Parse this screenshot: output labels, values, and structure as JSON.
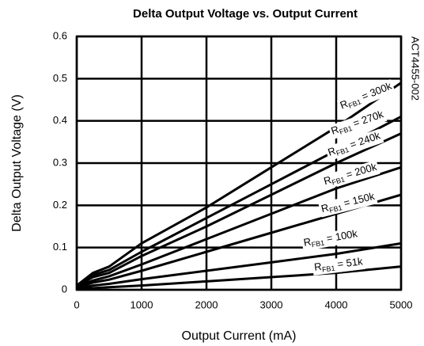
{
  "chart_data": {
    "type": "line",
    "title": "Delta Output Voltage vs. Output Current",
    "x_label": "Output Current (mA)",
    "y_label": "Delta Output Voltage (V)",
    "annotation": "ACT4455-002",
    "x": [
      0,
      250,
      500,
      1000,
      2000,
      3000,
      4000,
      5000
    ],
    "series": [
      {
        "name": "RFB1 = 300k",
        "color": "#000000",
        "values": [
          0.01,
          0.04,
          0.055,
          0.11,
          0.195,
          0.29,
          0.385,
          0.49
        ]
      },
      {
        "name": "RFB1 = 270k",
        "color": "#000000",
        "values": [
          0.01,
          0.035,
          0.047,
          0.09,
          0.17,
          0.25,
          0.33,
          0.41
        ]
      },
      {
        "name": "RFB1 = 240k",
        "color": "#000000",
        "values": [
          0.008,
          0.03,
          0.04,
          0.08,
          0.15,
          0.225,
          0.3,
          0.37
        ]
      },
      {
        "name": "RFB1 = 200k",
        "color": "#000000",
        "values": [
          0.007,
          0.022,
          0.032,
          0.06,
          0.12,
          0.18,
          0.24,
          0.29
        ]
      },
      {
        "name": "RFB1 = 150k",
        "color": "#000000",
        "values": [
          0.005,
          0.017,
          0.024,
          0.045,
          0.09,
          0.135,
          0.18,
          0.225
        ]
      },
      {
        "name": "RFB1 = 100k",
        "color": "#000000",
        "values": [
          0.003,
          0.01,
          0.014,
          0.025,
          0.045,
          0.065,
          0.085,
          0.11
        ]
      },
      {
        "name": "RFB1 = 51k",
        "color": "#000000",
        "values": [
          0.001,
          0.004,
          0.006,
          0.01,
          0.02,
          0.03,
          0.04,
          0.055
        ]
      }
    ],
    "xlim": [
      0,
      5000
    ],
    "xticks": [
      0,
      1000,
      2000,
      3000,
      4000,
      5000
    ],
    "ylim": [
      0,
      0.6
    ],
    "yticks": [
      0,
      0.1,
      0.2,
      0.3,
      0.4,
      0.5,
      0.6
    ],
    "grid": true
  }
}
